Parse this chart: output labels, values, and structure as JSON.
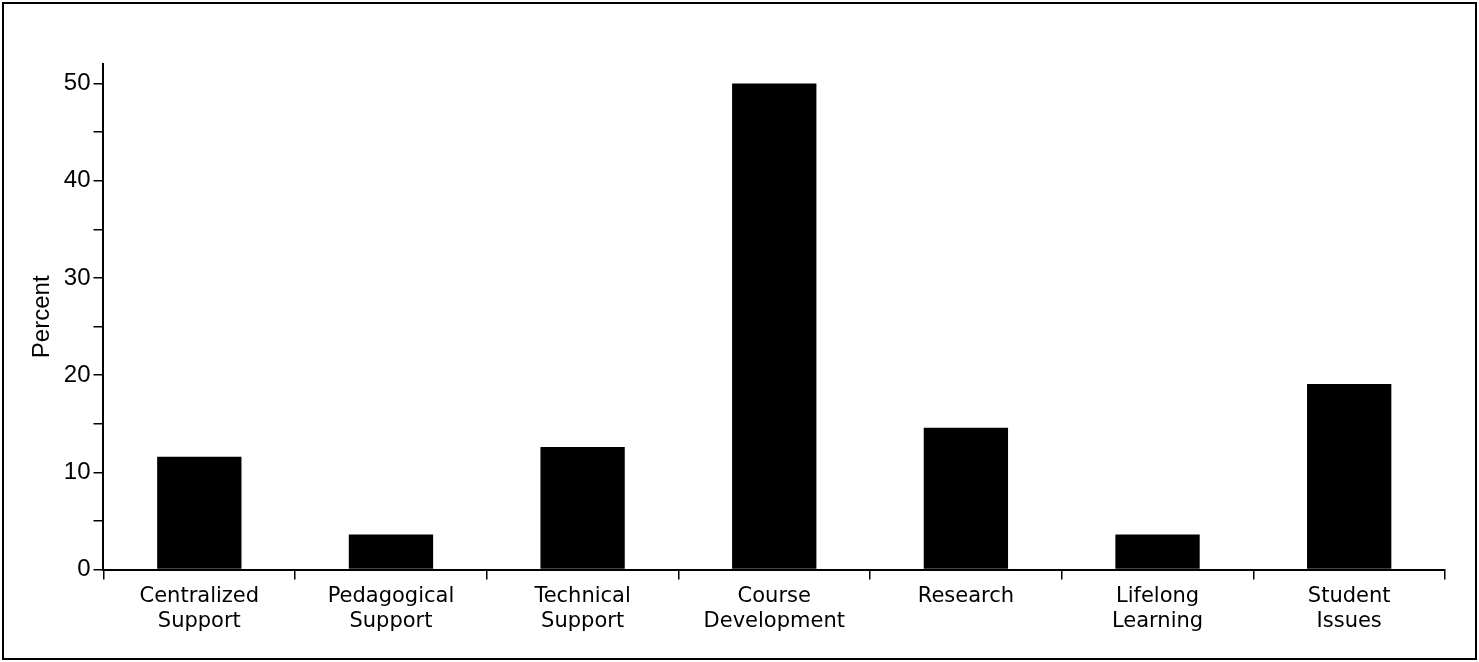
{
  "chart_data": {
    "type": "bar",
    "ylabel": "Percent",
    "categories": [
      "Centralized Support",
      "Pedagogical Support",
      "Technical Support",
      "Course Development",
      "Research",
      "Lifelong Learning",
      "Student Issues"
    ],
    "values": [
      11.6,
      3.6,
      12.6,
      50,
      14.6,
      3.6,
      19.1
    ],
    "color": "#000000",
    "ylim": [
      0,
      52
    ],
    "yticks": [
      0,
      {
        "value": 5,
        "label": null
      },
      10,
      {
        "value": 15,
        "label": null
      },
      20,
      {
        "value": 25,
        "label": null
      },
      30,
      {
        "value": 35,
        "label": null
      },
      40,
      {
        "value": 45,
        "label": null
      },
      50
    ],
    "grid": false,
    "legend": false
  }
}
